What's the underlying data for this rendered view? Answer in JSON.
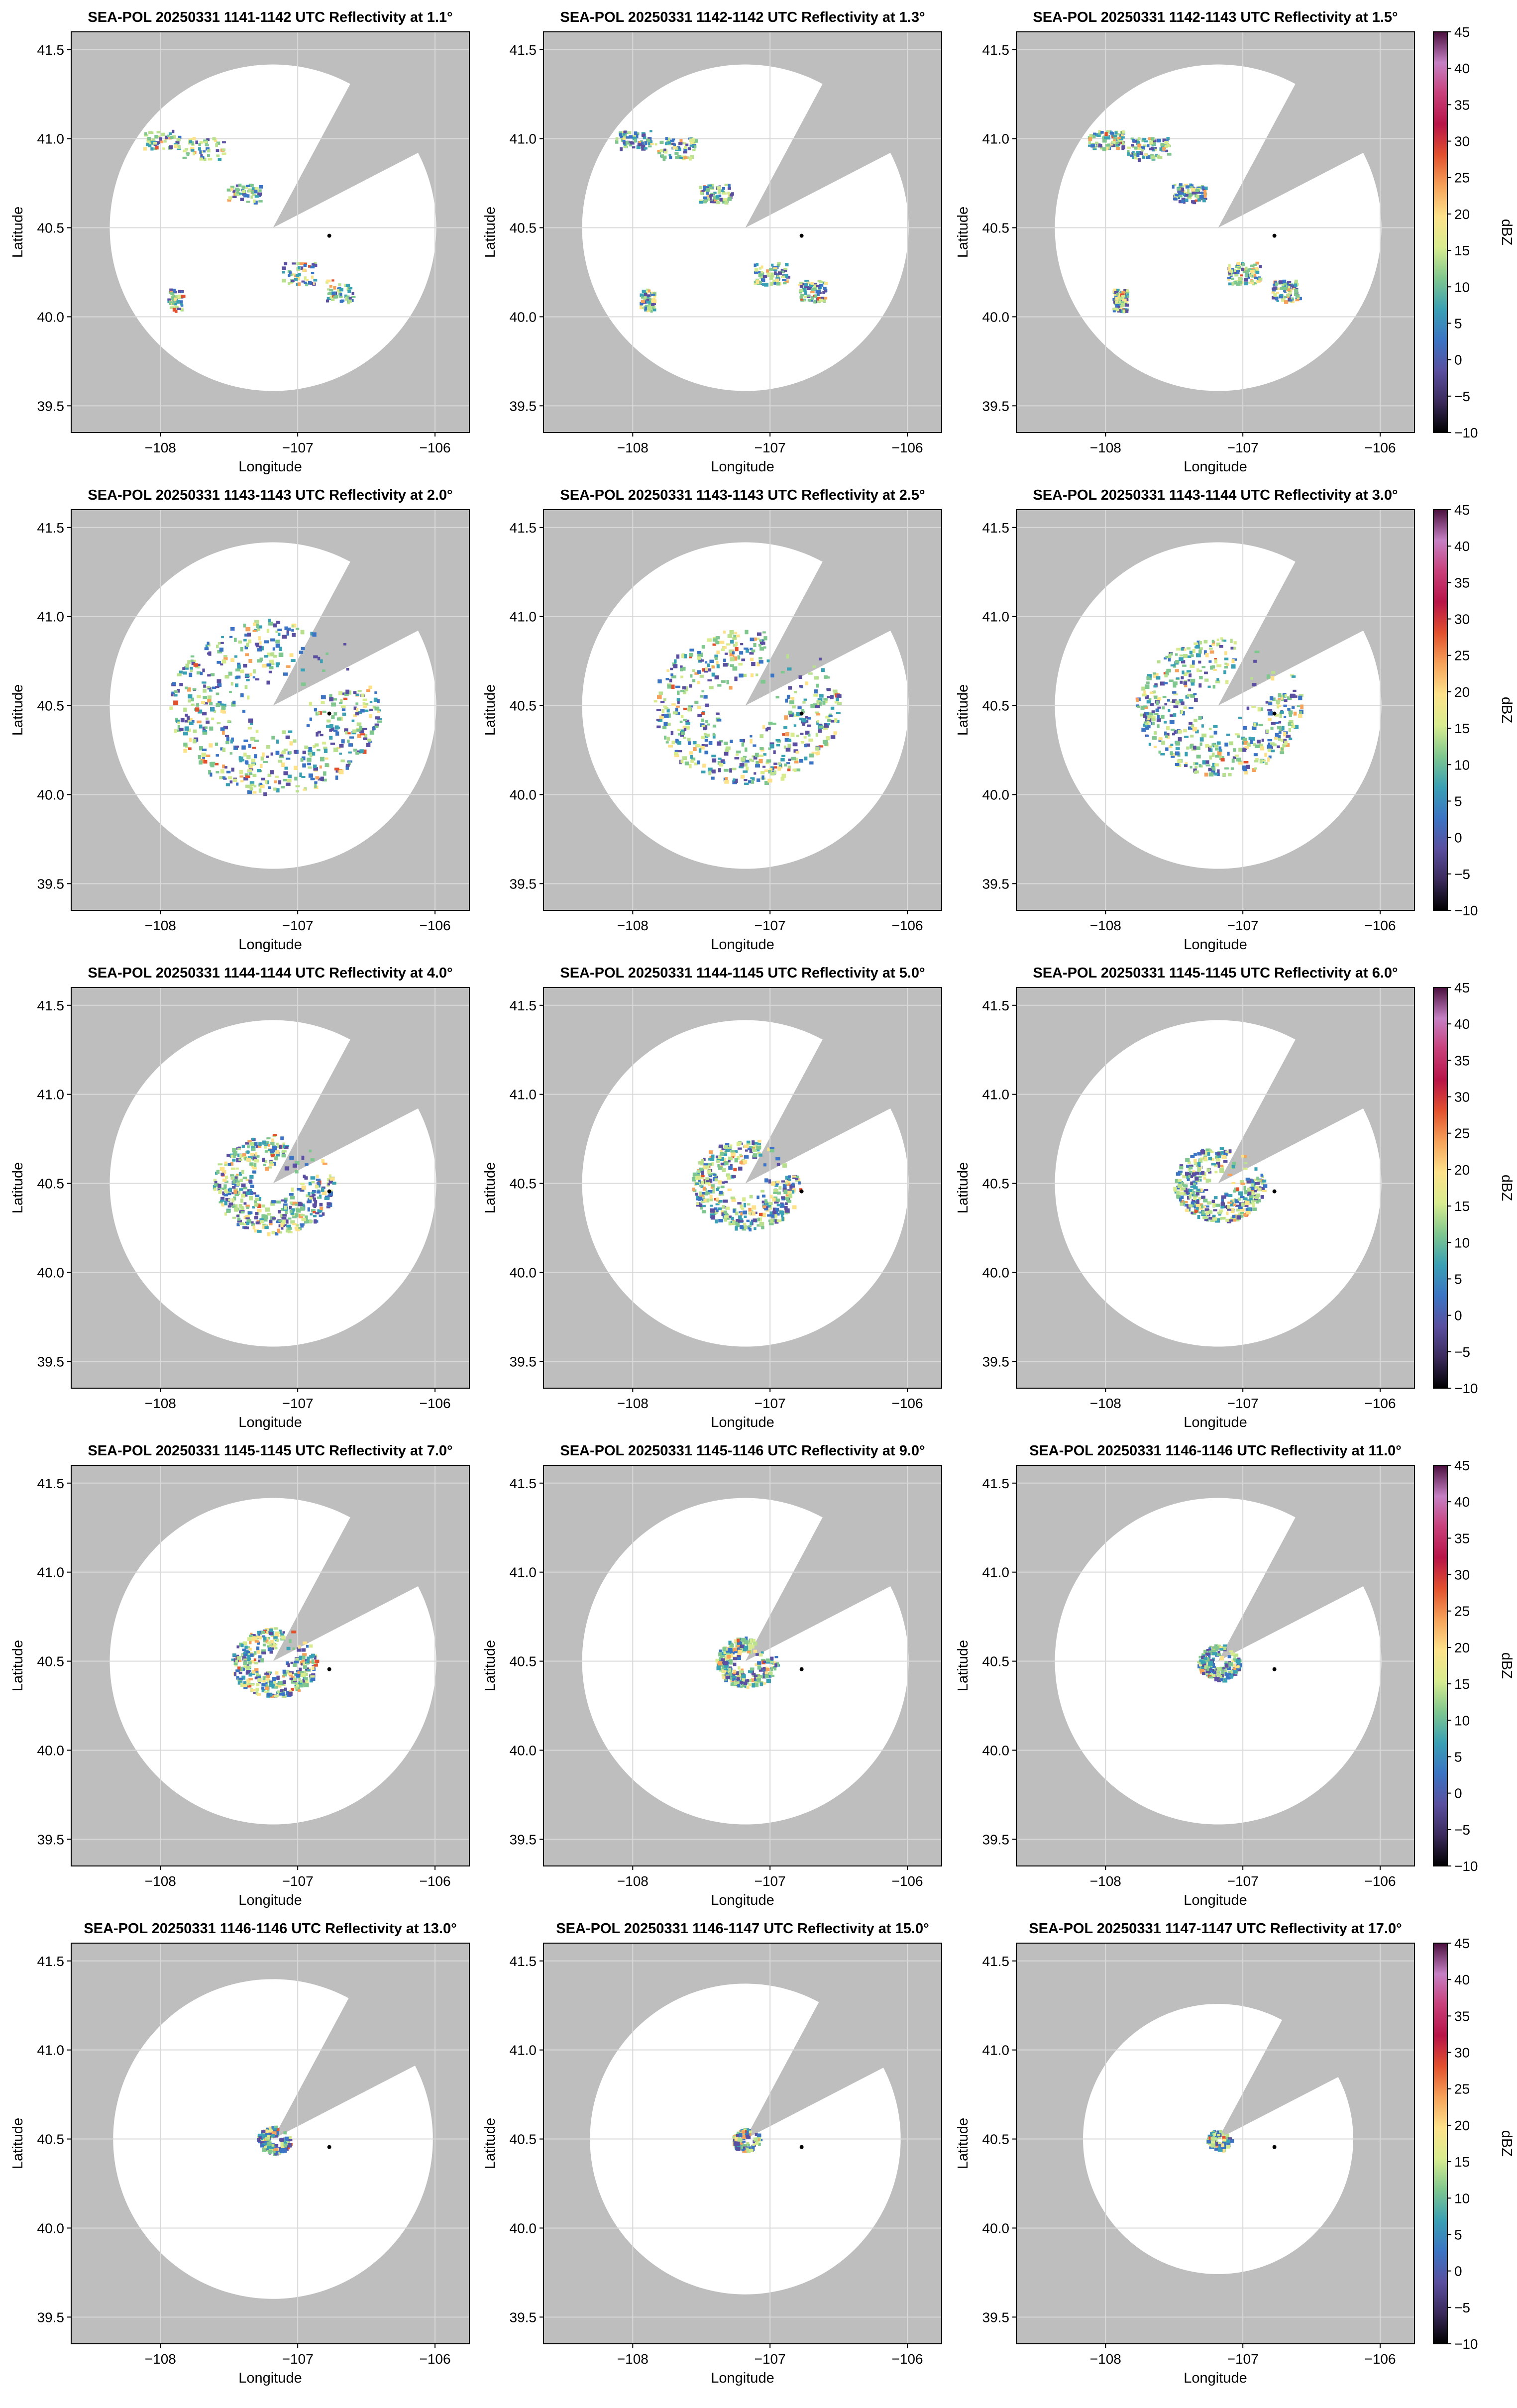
{
  "chart_data": {
    "type": "radar-ppi-grid",
    "units_label": "dBZ",
    "xlabel": "Longitude",
    "ylabel": "Latitude",
    "xlim": [
      -108.65,
      -105.75
    ],
    "ylim": [
      39.35,
      41.6
    ],
    "x_ticks": [
      -108,
      -107,
      -106
    ],
    "x_tick_labels": [
      "−108",
      "−107",
      "−106"
    ],
    "y_ticks": [
      39.5,
      40.0,
      40.5,
      41.0,
      41.5
    ],
    "y_tick_labels": [
      "39.5",
      "40.0",
      "40.5",
      "41.0",
      "41.5"
    ],
    "grid": true,
    "radar_site": [
      -107.18,
      40.5
    ],
    "station_point": [
      -106.77,
      40.455
    ],
    "colorbar": {
      "min": -10,
      "max": 45,
      "ticks": [
        -10,
        -5,
        0,
        5,
        10,
        15,
        20,
        25,
        30,
        35,
        40,
        45
      ],
      "tick_labels": [
        "−10",
        "−5",
        "0",
        "5",
        "10",
        "15",
        "20",
        "25",
        "30",
        "35",
        "40",
        "45"
      ],
      "palette": [
        "#000000",
        "#3b2a5c",
        "#5a4fa0",
        "#3b74c4",
        "#3aa0b4",
        "#7fc78f",
        "#d8ec8f",
        "#fde28a",
        "#f6a25a",
        "#e2512e",
        "#b81448",
        "#c8407a",
        "#c680c4",
        "#4a0f3e"
      ]
    },
    "panels": [
      {
        "title": "SEA-POL 20250331 1141-1142 UTC Reflectivity at 1.1°",
        "elevation": 1.1
      },
      {
        "title": "SEA-POL 20250331 1142-1142 UTC Reflectivity at 1.3°",
        "elevation": 1.3
      },
      {
        "title": "SEA-POL 20250331 1142-1143 UTC Reflectivity at 1.5°",
        "elevation": 1.5
      },
      {
        "title": "SEA-POL 20250331 1143-1143 UTC Reflectivity at 2.0°",
        "elevation": 2.0
      },
      {
        "title": "SEA-POL 20250331 1143-1143 UTC Reflectivity at 2.5°",
        "elevation": 2.5
      },
      {
        "title": "SEA-POL 20250331 1143-1144 UTC Reflectivity at 3.0°",
        "elevation": 3.0
      },
      {
        "title": "SEA-POL 20250331 1144-1144 UTC Reflectivity at 4.0°",
        "elevation": 4.0
      },
      {
        "title": "SEA-POL 20250331 1144-1145 UTC Reflectivity at 5.0°",
        "elevation": 5.0
      },
      {
        "title": "SEA-POL 20250331 1145-1145 UTC Reflectivity at 6.0°",
        "elevation": 6.0
      },
      {
        "title": "SEA-POL 20250331 1145-1145 UTC Reflectivity at 7.0°",
        "elevation": 7.0
      },
      {
        "title": "SEA-POL 20250331 1145-1146 UTC Reflectivity at 9.0°",
        "elevation": 9.0
      },
      {
        "title": "SEA-POL 20250331 1146-1146 UTC Reflectivity at 11.0°",
        "elevation": 11.0
      },
      {
        "title": "SEA-POL 20250331 1146-1146 UTC Reflectivity at 13.0°",
        "elevation": 13.0
      },
      {
        "title": "SEA-POL 20250331 1146-1147 UTC Reflectivity at 15.0°",
        "elevation": 15.0
      },
      {
        "title": "SEA-POL 20250331 1147-1147 UTC Reflectivity at 17.0°",
        "elevation": 17.0
      }
    ]
  },
  "colors": {
    "background_shade": "#bebebe",
    "sweep_fill": "#ffffff",
    "grid": "#d9d9d9",
    "axis": "#000000"
  }
}
